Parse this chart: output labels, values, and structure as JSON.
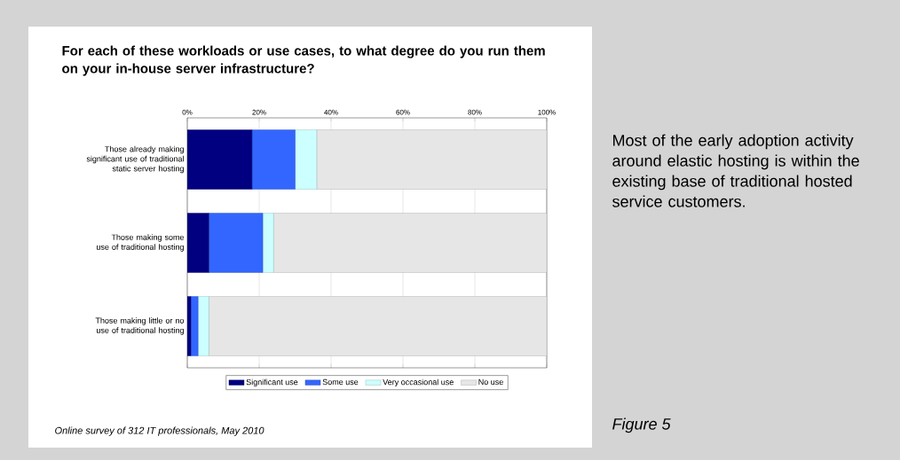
{
  "chart_data": {
    "type": "bar",
    "title": "For each of these workloads or use cases, to what degree do you run them on your in-house server infrastructure?",
    "categories": [
      "Those already making significant use of traditional static server hosting",
      "Those making some use of traditional hosting",
      "Those making little or no use of traditional hosting"
    ],
    "series": [
      {
        "name": "Significant use",
        "color": "#000080",
        "values": [
          18,
          6,
          1
        ]
      },
      {
        "name": "Some use",
        "color": "#3366ff",
        "values": [
          12,
          15,
          2
        ]
      },
      {
        "name": "Very occasional use",
        "color": "#ccffff",
        "values": [
          6,
          3,
          3
        ]
      },
      {
        "name": "No use",
        "color": "#e6e6e6",
        "values": [
          64,
          76,
          94
        ]
      }
    ],
    "stacked": true,
    "orientation": "horizontal",
    "xlim": [
      0,
      100
    ],
    "xticks": [
      {
        "value": 0,
        "label": "0%"
      },
      {
        "value": 20,
        "label": "20%"
      },
      {
        "value": 40,
        "label": "40%"
      },
      {
        "value": 60,
        "label": "60%"
      },
      {
        "value": 80,
        "label": "80%"
      },
      {
        "value": 100,
        "label": "100%"
      }
    ],
    "grid": "x",
    "legend": "bottom",
    "annotations": [
      "Online survey of 312 IT professionals, May 2010",
      "Most of the early adoption activity around elastic hosting is within the existing base of traditional hosted service customers.",
      "Figure 5"
    ]
  }
}
